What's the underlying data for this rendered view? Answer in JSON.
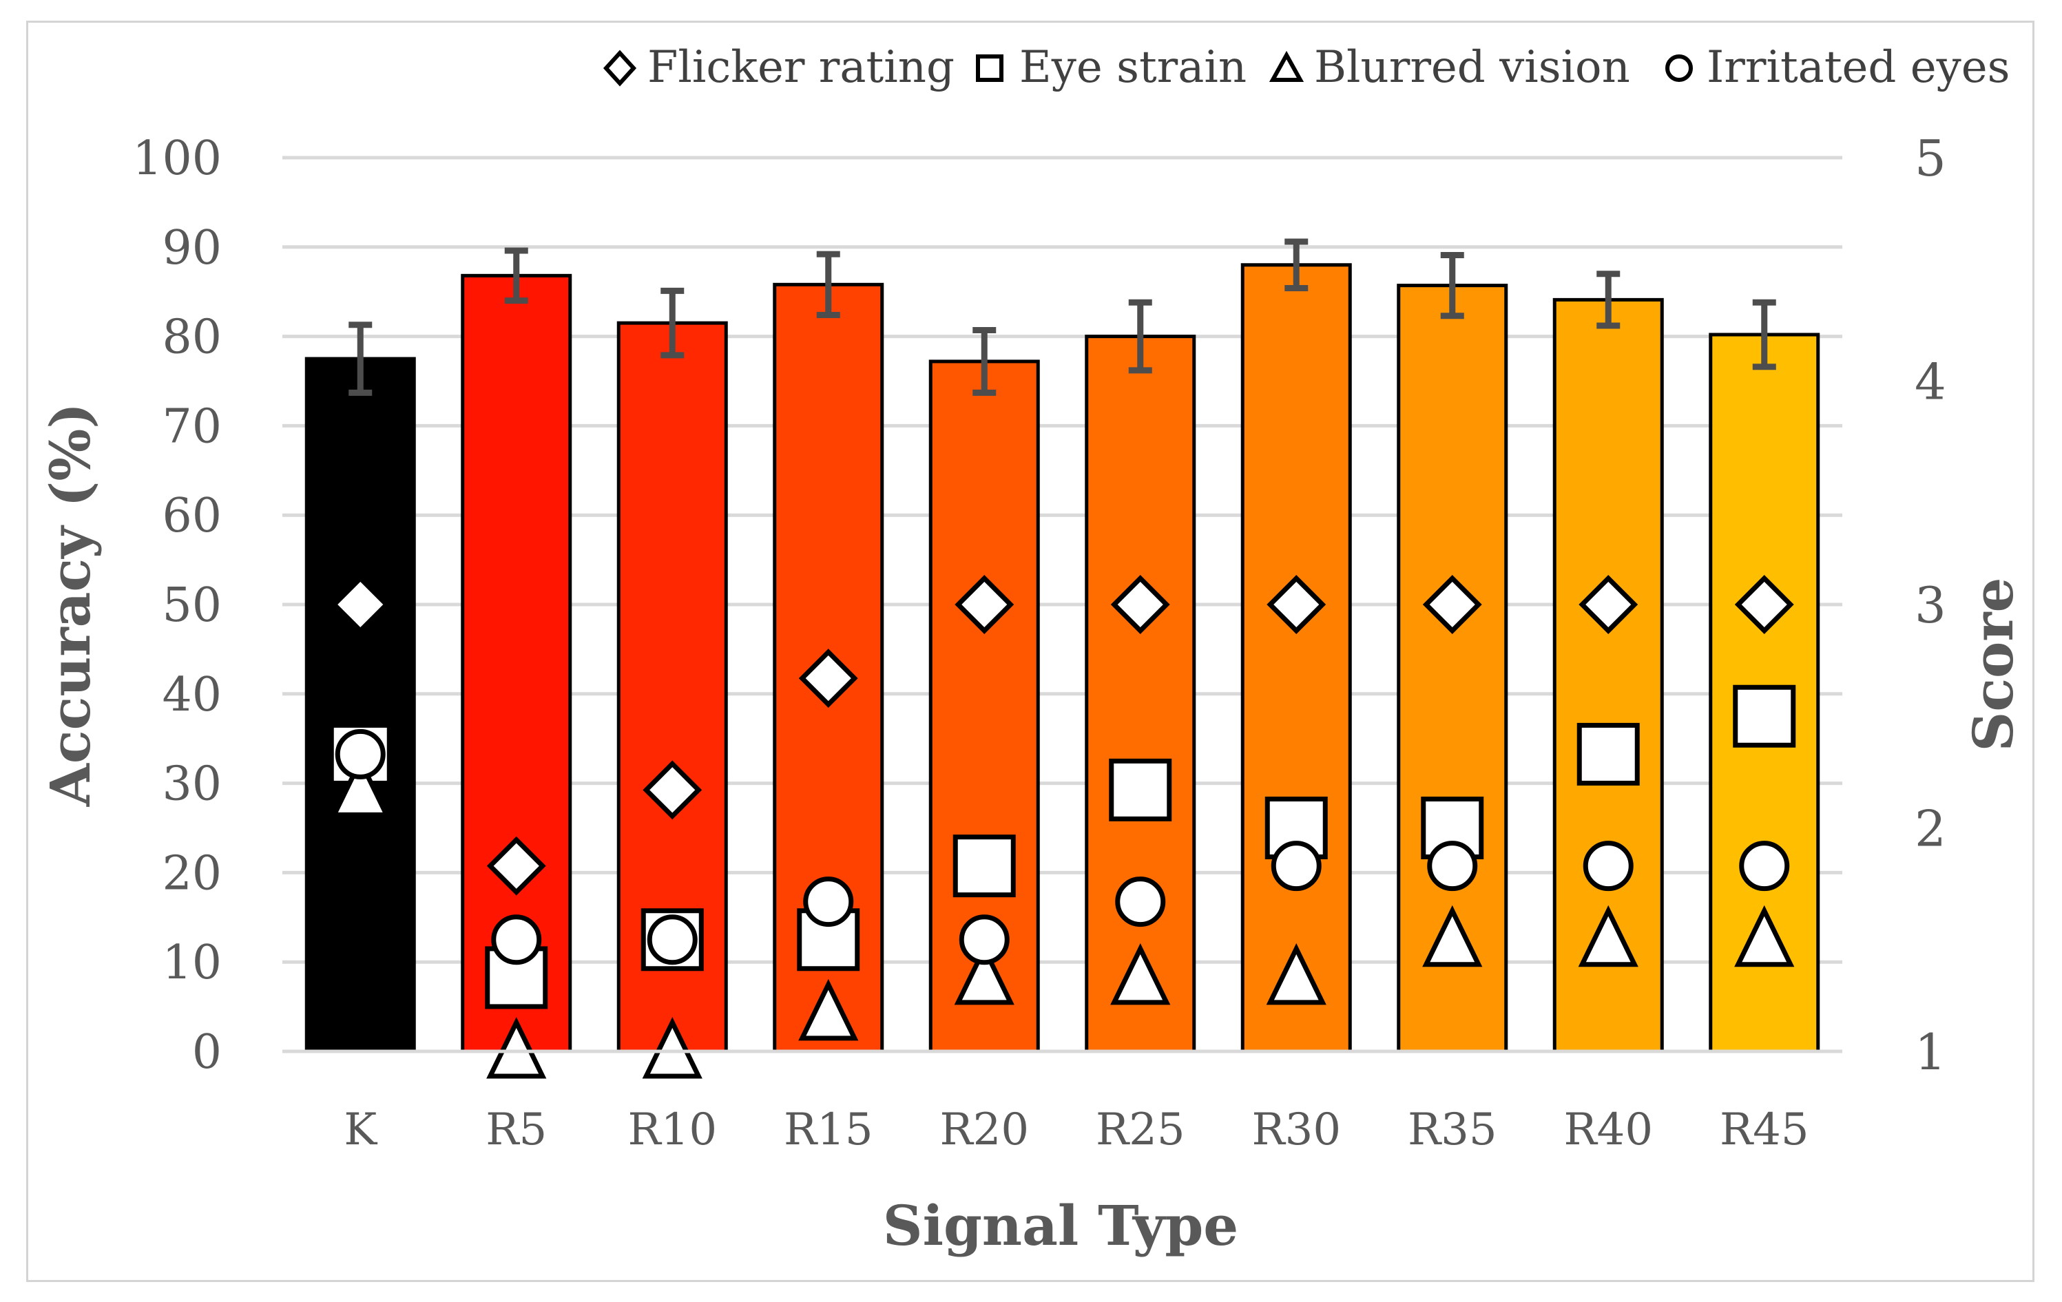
{
  "chart_data": {
    "type": "bar",
    "title": "",
    "xlabel": "Signal Type",
    "ylabel": "Accuracy (%)",
    "y2label": "Score",
    "ylim": [
      0,
      100
    ],
    "y2lim": [
      1,
      5
    ],
    "yticks": [
      0,
      10,
      20,
      30,
      40,
      50,
      60,
      70,
      80,
      90,
      100
    ],
    "y2ticks": [
      1,
      2,
      3,
      4,
      5
    ],
    "grid": true,
    "legend_position": "top-right",
    "categories": [
      "K",
      "R5",
      "R10",
      "R15",
      "R20",
      "R25",
      "R30",
      "R35",
      "R40",
      "R45"
    ],
    "bar_colors": [
      "#000000",
      "#FF1500",
      "#FF2800",
      "#FF4200",
      "#FF5600",
      "#FF6C00",
      "#FF8000",
      "#FF9500",
      "#FFA900",
      "#FFBE00"
    ],
    "accuracy": [
      77.5,
      86.8,
      81.5,
      85.8,
      77.2,
      80.0,
      88.0,
      85.7,
      84.1,
      80.2
    ],
    "accuracy_error": [
      3.8,
      2.8,
      3.6,
      3.4,
      3.5,
      3.8,
      2.6,
      3.4,
      2.9,
      3.6
    ],
    "series": [
      {
        "name": "Flicker rating",
        "marker": "diamond",
        "axis": "right",
        "values": [
          3.0,
          1.83,
          2.17,
          2.67,
          3.0,
          3.0,
          3.0,
          3.0,
          3.0,
          3.0
        ]
      },
      {
        "name": "Eye strain",
        "marker": "square",
        "axis": "right",
        "values": [
          2.33,
          1.33,
          1.5,
          1.5,
          1.83,
          2.17,
          2.0,
          2.0,
          2.33,
          2.5
        ]
      },
      {
        "name": "Blurred vision",
        "marker": "triangle",
        "axis": "right",
        "values": [
          2.17,
          1.0,
          1.0,
          1.17,
          1.33,
          1.33,
          1.33,
          1.5,
          1.5,
          1.5
        ]
      },
      {
        "name": "Irritated eyes",
        "marker": "circle",
        "axis": "right",
        "values": [
          2.33,
          1.5,
          1.5,
          1.67,
          1.5,
          1.67,
          1.83,
          1.83,
          1.83,
          1.83
        ]
      }
    ]
  }
}
